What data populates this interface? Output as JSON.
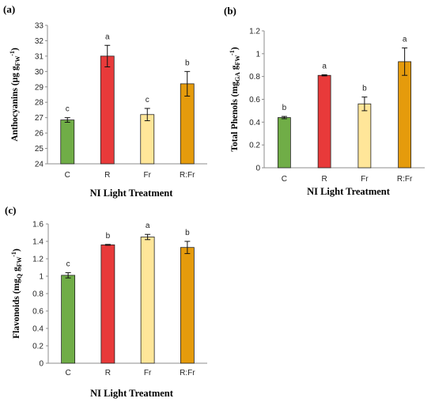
{
  "colors": {
    "C": "#70ad47",
    "R": "#e83a3a",
    "Fr": "#ffe699",
    "R:Fr": "#e59b0c"
  },
  "chart_data": [
    {
      "type": "bar",
      "panel": "(a)",
      "categories": [
        "C",
        "R",
        "Fr",
        "R:Fr"
      ],
      "values": [
        26.85,
        31.0,
        27.2,
        29.2
      ],
      "errors": [
        0.15,
        0.7,
        0.4,
        0.8
      ],
      "letters": [
        "c",
        "a",
        "c",
        "b"
      ],
      "ylim": [
        24,
        33
      ],
      "yticks": [
        24,
        25,
        26,
        27,
        28,
        29,
        30,
        31,
        32,
        33
      ],
      "xlabel": "NI Light Treatment",
      "ylabel": {
        "main": "Anthocyanins (µg g",
        "sub": "FW",
        "sup": "-1",
        "tail": ")"
      }
    },
    {
      "type": "bar",
      "panel": "(b)",
      "categories": [
        "C",
        "R",
        "Fr",
        "R:Fr"
      ],
      "values": [
        0.44,
        0.81,
        0.56,
        0.93
      ],
      "errors": [
        0.01,
        0.005,
        0.06,
        0.12
      ],
      "letters": [
        "b",
        "a",
        "b",
        "a"
      ],
      "ylim": [
        0,
        1.2
      ],
      "yticks": [
        "0",
        "0.2",
        "0.4",
        "0.6",
        "0.8",
        "1",
        "1.2"
      ],
      "xlabel": "NI Light Treatment",
      "ylabel": {
        "main": "Total Phenols (mg",
        "sub": "GA",
        "mid": " g",
        "sub2": "FW",
        "sup": "-1",
        "tail": ")"
      }
    },
    {
      "type": "bar",
      "panel": "(c)",
      "categories": [
        "C",
        "R",
        "Fr",
        "R:Fr"
      ],
      "values": [
        1.01,
        1.36,
        1.45,
        1.33
      ],
      "errors": [
        0.03,
        0.005,
        0.03,
        0.07
      ],
      "letters": [
        "c",
        "b",
        "a",
        "b"
      ],
      "ylim": [
        0,
        1.6
      ],
      "yticks": [
        "0",
        "0.2",
        "0.4",
        "0.6",
        "0.8",
        "1",
        "1.2",
        "1.4",
        "1.6"
      ],
      "xlabel": "NI Light Treatment",
      "ylabel": {
        "main": "Flavonoids (mg",
        "sub": "Q",
        "mid": " g",
        "sub2": "FW",
        "sup": "-1",
        "tail": ")"
      }
    }
  ]
}
